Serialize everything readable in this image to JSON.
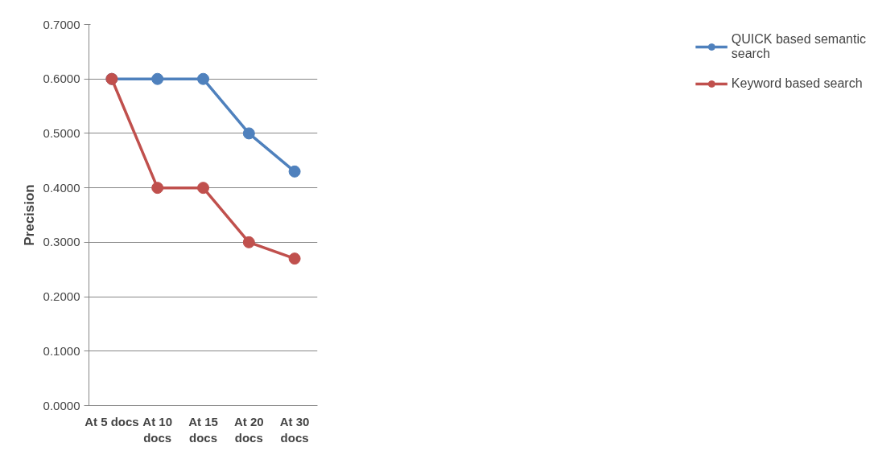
{
  "chart_data": {
    "type": "line",
    "ylabel": "Precision",
    "categories": [
      "At 5 docs",
      "At 10 docs",
      "At 15 docs",
      "At 20 docs",
      "At 30 docs"
    ],
    "series": [
      {
        "name": "QUICK based semantic search",
        "color": "#4f81bd",
        "values": [
          0.6,
          0.6,
          0.6,
          0.5,
          0.43
        ]
      },
      {
        "name": "Keyword based search",
        "color": "#c0504d",
        "values": [
          0.6,
          0.4,
          0.4,
          0.3,
          0.27
        ]
      }
    ],
    "ylim": [
      0,
      0.7
    ],
    "yticks": [
      {
        "value": 0,
        "label": "0.0000"
      },
      {
        "value": 0.1,
        "label": "0.1000"
      },
      {
        "value": 0.2,
        "label": "0.2000"
      },
      {
        "value": 0.3,
        "label": "0.3000"
      },
      {
        "value": 0.4,
        "label": "0.4000"
      },
      {
        "value": 0.5,
        "label": "0.5000"
      },
      {
        "value": 0.6,
        "label": "0.6000"
      },
      {
        "value": 0.7,
        "label": "0.7000"
      }
    ],
    "grid": "y",
    "legend": "right",
    "marker": "circle",
    "line_style": "solid"
  }
}
